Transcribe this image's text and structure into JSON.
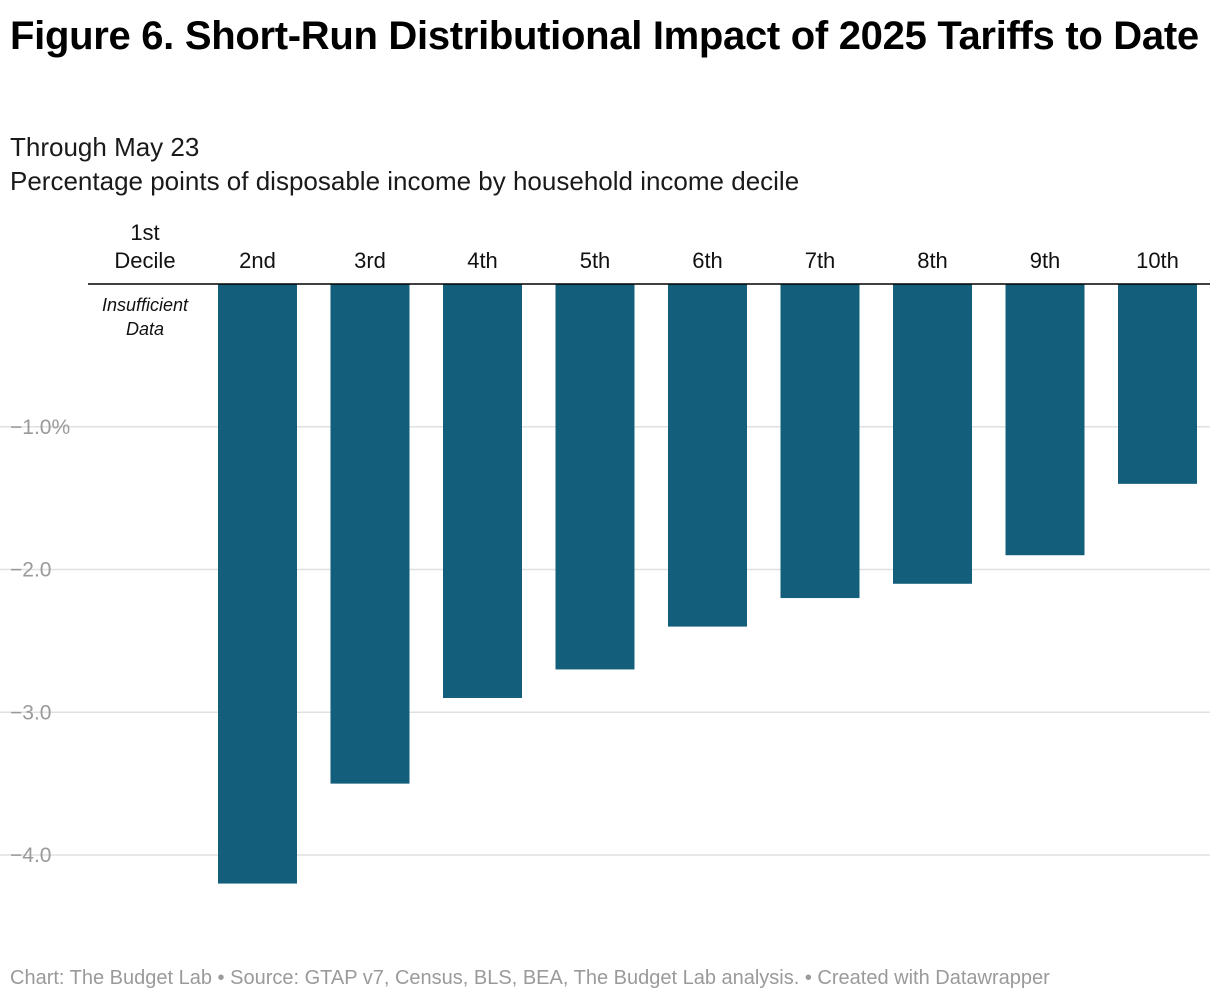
{
  "title": "Figure 6. Short-Run Distributional Impact of 2025 Tariffs to Date",
  "subtitle_lines": [
    "Through May 23",
    "Percentage points of disposable income by household income decile"
  ],
  "footer": "Chart: The Budget Lab • Source: GTAP v7, Census, BLS, BEA, The Budget Lab analysis. • Created with Datawrapper",
  "colors": {
    "bar": "#135e7a",
    "grid": "#e0e0e0",
    "axis_label": "#9a9a9a"
  },
  "chart_data": {
    "type": "bar",
    "categories": [
      "1st Decile",
      "2nd",
      "3rd",
      "4th",
      "5th",
      "6th",
      "7th",
      "8th",
      "9th",
      "10th"
    ],
    "category_label_lines": [
      [
        "1st",
        "Decile"
      ],
      [
        "2nd"
      ],
      [
        "3rd"
      ],
      [
        "4th"
      ],
      [
        "5th"
      ],
      [
        "6th"
      ],
      [
        "7th"
      ],
      [
        "8th"
      ],
      [
        "9th"
      ],
      [
        "10th"
      ]
    ],
    "values": [
      null,
      -4.2,
      -3.5,
      -2.9,
      -2.7,
      -2.4,
      -2.2,
      -2.1,
      -1.9,
      -1.4
    ],
    "ylim": [
      -4.2,
      0
    ],
    "yticks": [
      -1.0,
      -2.0,
      -3.0,
      -4.0
    ],
    "ytick_labels": [
      "−1.0%",
      "−2.0",
      "−3.0",
      "−4.0"
    ],
    "annotation": {
      "category": "1st Decile",
      "lines": [
        "Insufficient",
        "Data"
      ]
    },
    "category_labels_position": "top",
    "grid": true,
    "legend": false
  }
}
